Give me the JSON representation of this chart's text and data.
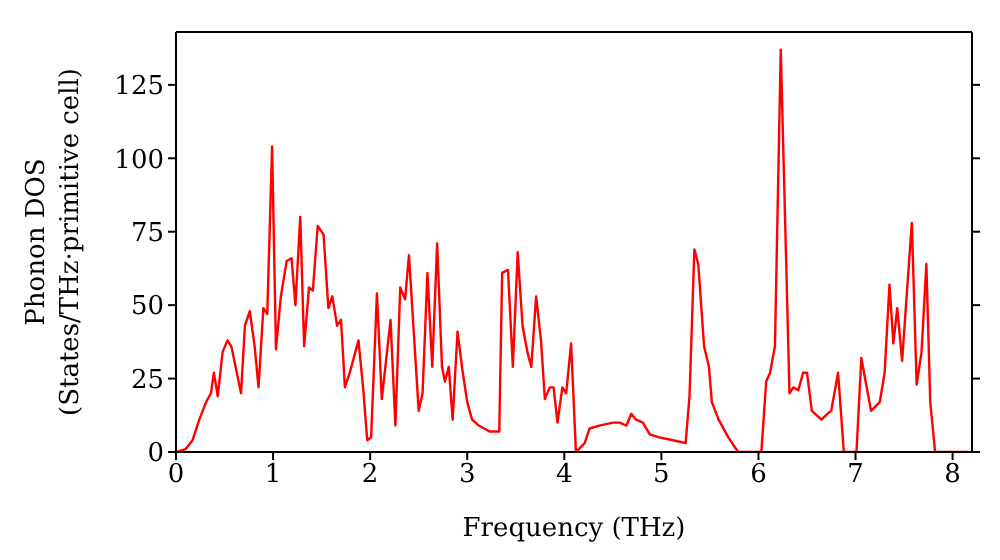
{
  "chart_data": {
    "type": "line",
    "xlabel": "Frequency (THz)",
    "ylabel": "Phonon DOS\n(States/THz·primitive cell)",
    "xlim": [
      0,
      8.2
    ],
    "xticks": [
      0,
      1,
      2,
      3,
      4,
      5,
      6,
      7,
      8
    ],
    "ylim": [
      0,
      143
    ],
    "yticks": [
      0,
      25,
      50,
      75,
      100,
      125
    ],
    "marker": "none",
    "line_style": "solid",
    "series": [
      {
        "color": "#ff0000",
        "x": [
          0,
          0.1,
          0.17,
          0.24,
          0.31,
          0.36,
          0.39,
          0.43,
          0.48,
          0.53,
          0.57,
          0.62,
          0.67,
          0.71,
          0.76,
          0.81,
          0.85,
          0.9,
          0.94,
          0.99,
          1.03,
          1.08,
          1.14,
          1.19,
          1.23,
          1.28,
          1.32,
          1.37,
          1.41,
          1.46,
          1.52,
          1.57,
          1.61,
          1.66,
          1.7,
          1.74,
          1.79,
          1.88,
          1.93,
          1.97,
          2.01,
          2.07,
          2.12,
          2.21,
          2.26,
          2.31,
          2.36,
          2.4,
          2.5,
          2.54,
          2.59,
          2.64,
          2.69,
          2.74,
          2.77,
          2.81,
          2.85,
          2.9,
          2.95,
          3.0,
          3.05,
          3.12,
          3.23,
          3.33,
          3.36,
          3.42,
          3.47,
          3.52,
          3.57,
          3.62,
          3.66,
          3.71,
          3.76,
          3.8,
          3.85,
          3.89,
          3.93,
          3.98,
          4.02,
          4.07,
          4.12,
          4.21,
          4.26,
          4.36,
          4.5,
          4.57,
          4.64,
          4.69,
          4.74,
          4.81,
          4.88,
          4.98,
          5.12,
          5.25,
          5.29,
          5.34,
          5.38,
          5.44,
          5.49,
          5.52,
          5.59,
          5.69,
          5.79,
          6.03,
          6.08,
          6.12,
          6.17,
          6.23,
          6.32,
          6.36,
          6.41,
          6.46,
          6.5,
          6.55,
          6.65,
          6.71,
          6.75,
          6.82,
          6.88,
          7.01,
          7.06,
          7.16,
          7.25,
          7.3,
          7.35,
          7.39,
          7.43,
          7.48,
          7.58,
          7.63,
          7.68,
          7.73,
          7.77,
          7.82,
          8.16
        ],
        "values": [
          0,
          1,
          4,
          11,
          17,
          20,
          27,
          19,
          34,
          38,
          36,
          28,
          20,
          43,
          48,
          36,
          22,
          49,
          47,
          104,
          35,
          53,
          65,
          66,
          50,
          80,
          36,
          56,
          55,
          77,
          74,
          49,
          53,
          43,
          45,
          22,
          27,
          38,
          21,
          4,
          5,
          54,
          18,
          45,
          9,
          56,
          52,
          67,
          14,
          20,
          61,
          29,
          71,
          29,
          24,
          29,
          11,
          41,
          28,
          17,
          11,
          9,
          7,
          7,
          61,
          62,
          29,
          68,
          43,
          34,
          29,
          53,
          38,
          18,
          22,
          22,
          10,
          22,
          20,
          37,
          0,
          3,
          8,
          9,
          10,
          10,
          9,
          13,
          11,
          10,
          6,
          5,
          4,
          3,
          19,
          69,
          64,
          36,
          29,
          17,
          11,
          5,
          0,
          0,
          24,
          27,
          36,
          137,
          20,
          22,
          21,
          27,
          27,
          14,
          11,
          13,
          14,
          27,
          0,
          0,
          32,
          14,
          17,
          27,
          57,
          37,
          49,
          31,
          78,
          23,
          34,
          64,
          17,
          0,
          0
        ]
      }
    ]
  }
}
